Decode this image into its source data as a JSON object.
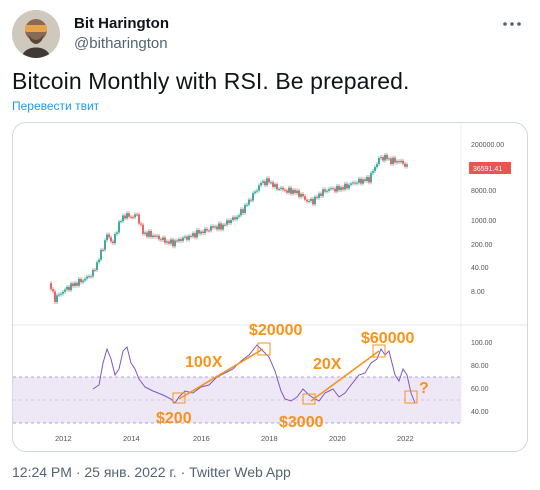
{
  "author": {
    "name": "Bit Harington",
    "handle": "@bitharington"
  },
  "tweet": {
    "text": "Bitcoin Monthly with RSI. Be prepared.",
    "translate_label": "Перевести твит"
  },
  "meta": {
    "timestamp": "12:24 PM · 25 янв. 2022 г. · Twitter Web App"
  },
  "chart": {
    "price_labels": [
      "200000.00",
      "8000.00",
      "1000.00",
      "200.00",
      "40.00",
      "8.00"
    ],
    "current_price": "36591.41",
    "rsi_labels": [
      "100.00",
      "80.00",
      "60.00",
      "40.00"
    ],
    "year_labels": [
      "2012",
      "2014",
      "2016",
      "2018",
      "2020",
      "2022"
    ],
    "annotations": {
      "top1": "$20000",
      "top2": "$60000",
      "bottom1": "$200",
      "bottom2": "$3000",
      "mult1": "100X",
      "mult2": "20X",
      "question": "?"
    },
    "colors": {
      "up": "#26a69a",
      "down": "#ef5350",
      "rsi_line": "#7e57c2",
      "rsi_band": "#ede7f6",
      "annotation": "#f7931a",
      "price_tag": "#ef5350"
    }
  }
}
